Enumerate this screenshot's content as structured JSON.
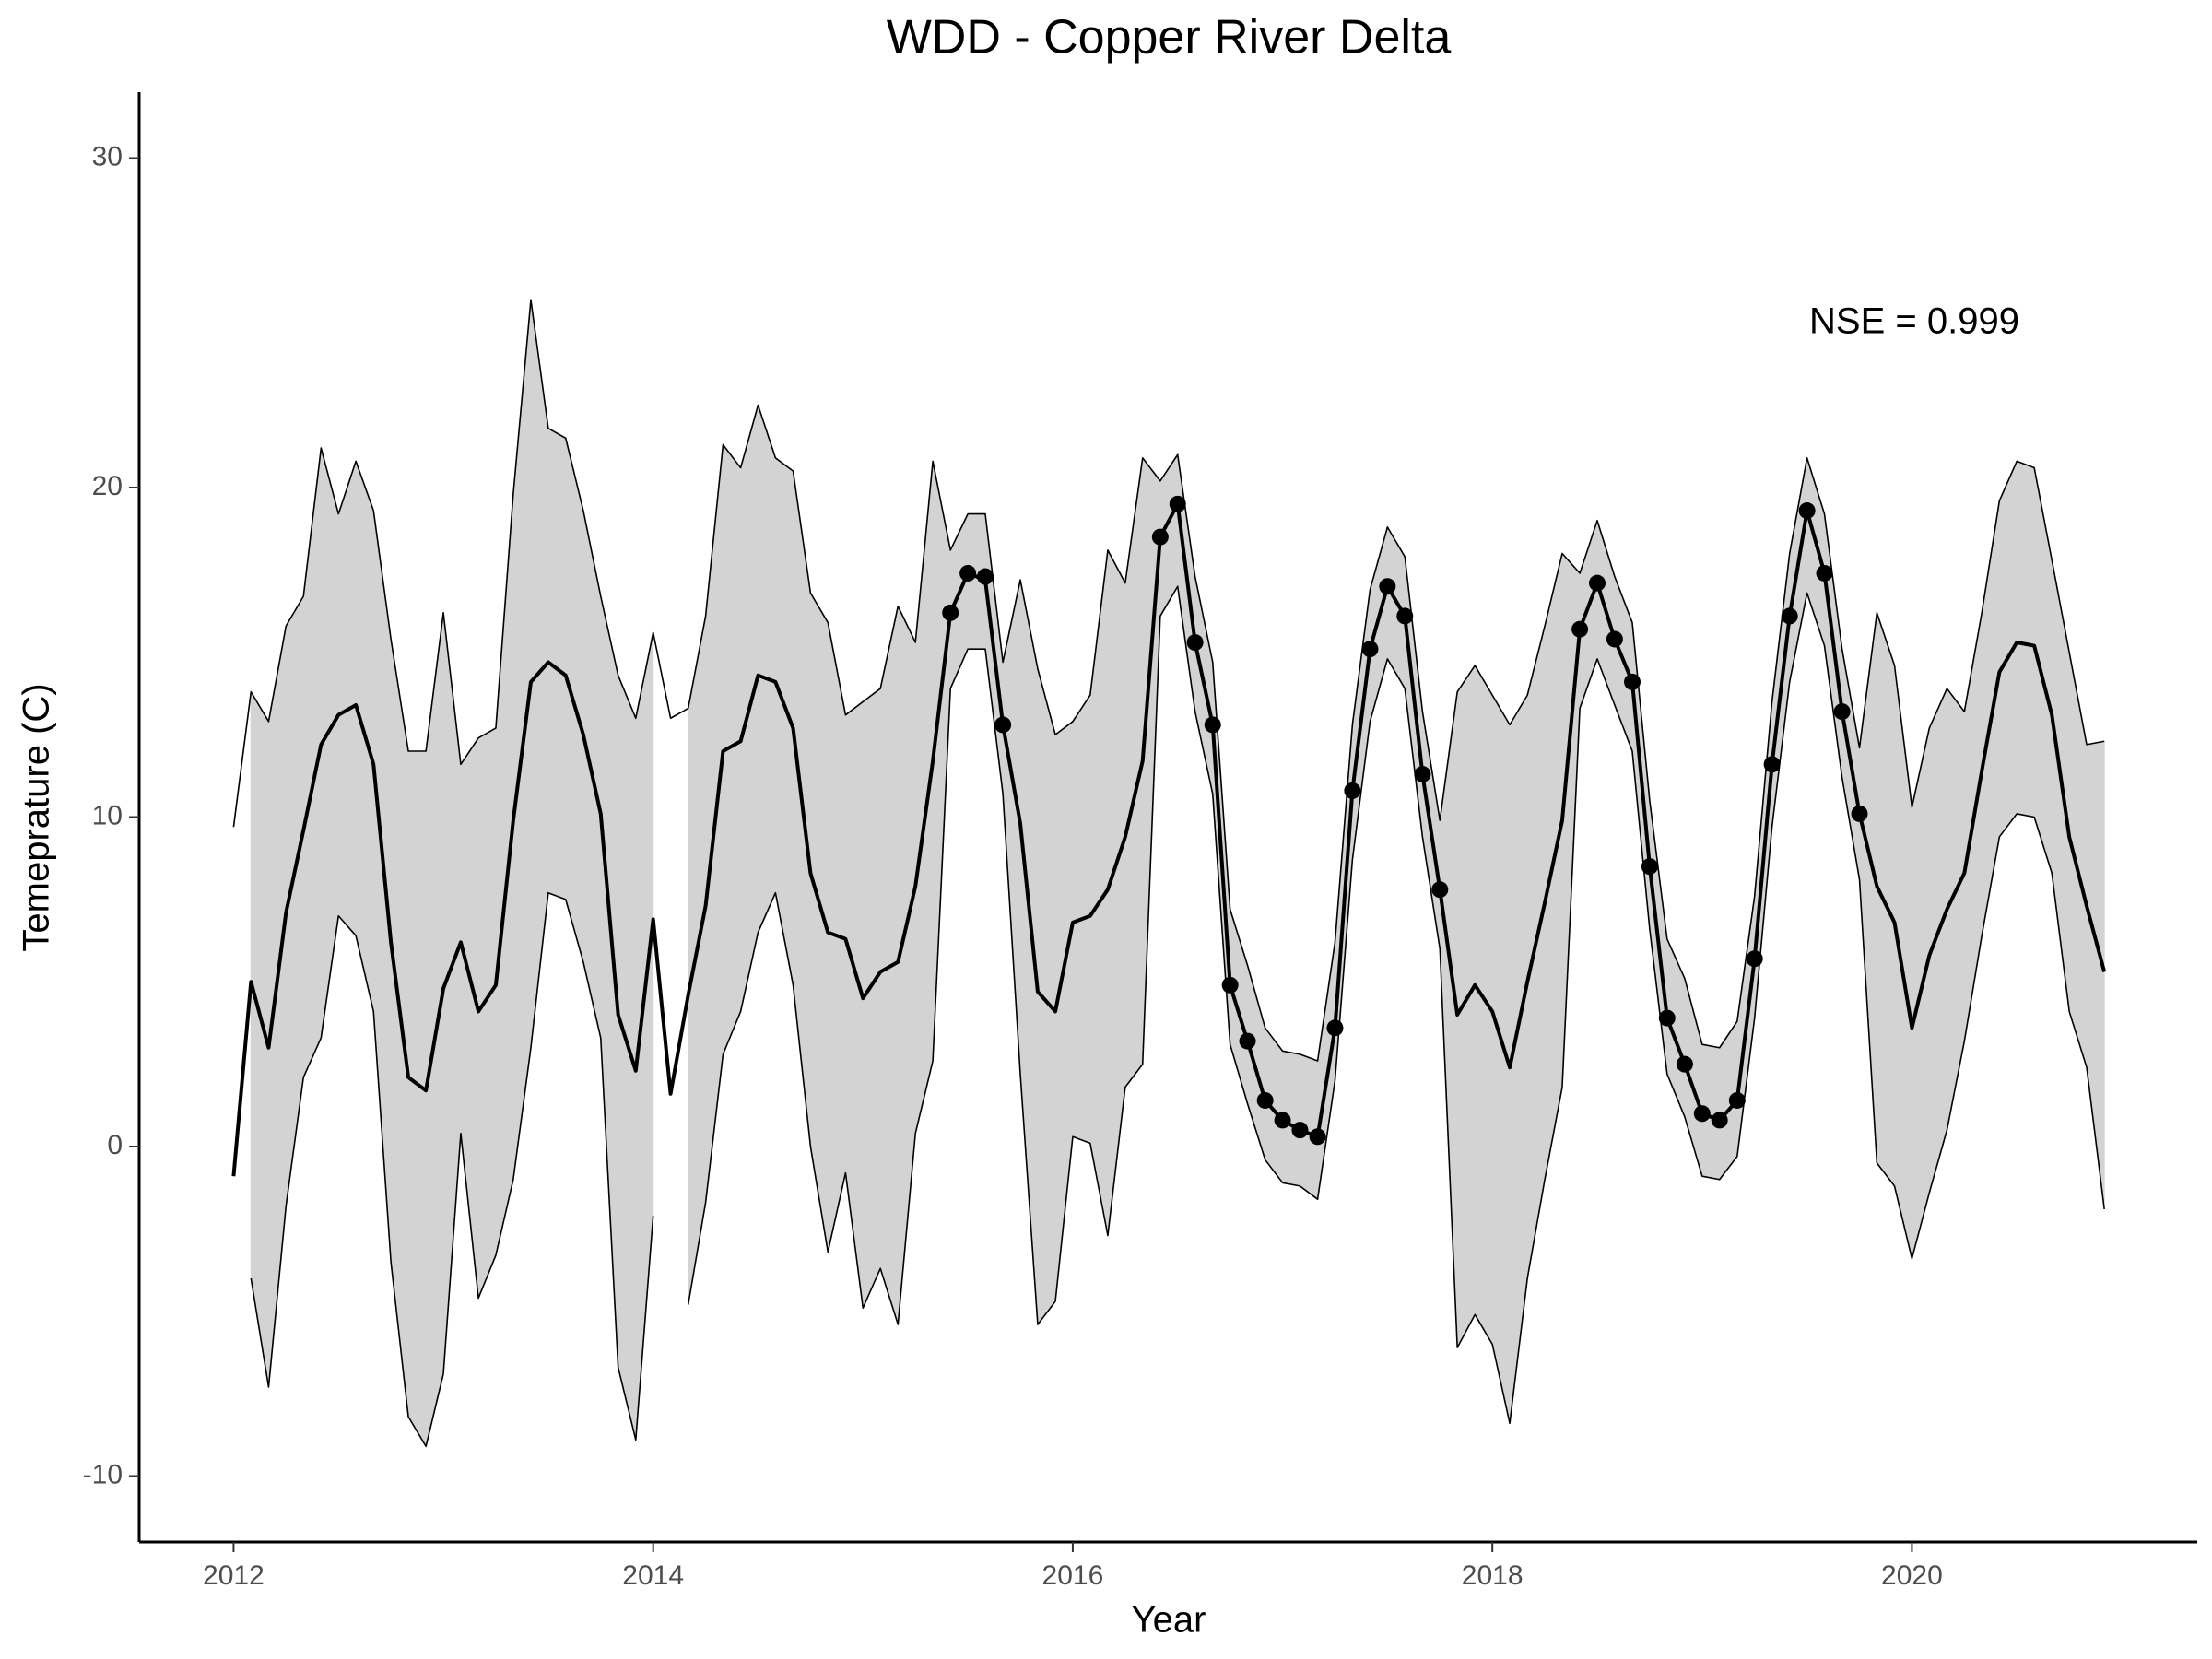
{
  "chart_data": {
    "type": "line",
    "title": "WDD - Copper River Delta",
    "x_label": "Year",
    "y_label": "Temeprature (C)",
    "annotation": "NSE = 0.999",
    "x": [
      2012,
      2012.083,
      2012.167,
      2012.25,
      2012.333,
      2012.417,
      2012.5,
      2012.583,
      2012.667,
      2012.75,
      2012.833,
      2012.917,
      2013,
      2013.083,
      2013.167,
      2013.25,
      2013.333,
      2013.417,
      2013.5,
      2013.583,
      2013.667,
      2013.75,
      2013.833,
      2013.917,
      2014,
      2014.083,
      2014.167,
      2014.25,
      2014.333,
      2014.417,
      2014.5,
      2014.583,
      2014.667,
      2014.75,
      2014.833,
      2014.917,
      2015,
      2015.083,
      2015.167,
      2015.25,
      2015.333,
      2015.417,
      2015.5,
      2015.583,
      2015.667,
      2015.75,
      2015.833,
      2015.917,
      2016,
      2016.083,
      2016.167,
      2016.25,
      2016.333,
      2016.417,
      2016.5,
      2016.583,
      2016.667,
      2016.75,
      2016.833,
      2016.917,
      2017,
      2017.083,
      2017.167,
      2017.25,
      2017.333,
      2017.417,
      2017.5,
      2017.583,
      2017.667,
      2017.75,
      2017.833,
      2017.917,
      2018,
      2018.083,
      2018.167,
      2018.25,
      2018.333,
      2018.417,
      2018.5,
      2018.583,
      2018.667,
      2018.75,
      2018.833,
      2018.917,
      2019,
      2019.083,
      2019.167,
      2019.25,
      2019.333,
      2019.417,
      2019.5,
      2019.583,
      2019.667,
      2019.75,
      2019.833,
      2019.917,
      2020,
      2020.083,
      2020.167,
      2020.25,
      2020.333,
      2020.417,
      2020.5,
      2020.583,
      2020.667,
      2020.75,
      2020.833,
      2020.917
    ],
    "mean": [
      -0.9,
      5.0,
      3.0,
      7.1,
      9.6,
      12.2,
      13.1,
      13.4,
      11.6,
      6.2,
      2.1,
      1.7,
      4.8,
      6.2,
      4.1,
      4.9,
      9.9,
      14.1,
      14.7,
      14.3,
      12.5,
      10.1,
      4.0,
      2.3,
      6.9,
      1.6,
      4.6,
      7.3,
      12.0,
      12.3,
      14.3,
      14.1,
      12.7,
      8.3,
      6.5,
      6.3,
      4.5,
      5.3,
      5.6,
      7.9,
      11.7,
      16.2,
      17.4,
      17.2,
      12.8,
      9.8,
      4.7,
      4.1,
      6.8,
      7.0,
      7.8,
      9.4,
      11.7,
      18.5,
      19.5,
      15.3,
      12.8,
      4.9,
      3.2,
      1.4,
      0.8,
      0.5,
      0.3,
      3.6,
      10.8,
      15.1,
      17.0,
      16.1,
      11.3,
      7.8,
      4.0,
      4.9,
      4.1,
      2.4,
      5.0,
      7.4,
      9.9,
      15.7,
      17.1,
      15.4,
      14.1,
      8.5,
      3.9,
      2.5,
      1.0,
      0.8,
      1.4,
      5.7,
      11.6,
      16.1,
      19.3,
      17.4,
      13.2,
      10.1,
      7.9,
      6.8,
      3.6,
      5.8,
      7.2,
      8.3,
      11.4,
      14.4,
      15.3,
      15.2,
      13.1,
      9.4,
      7.3,
      5.3
    ],
    "upper": [
      9.7,
      13.8,
      12.9,
      15.8,
      16.7,
      21.2,
      19.2,
      20.8,
      19.3,
      15.4,
      12.0,
      12.0,
      16.2,
      11.6,
      12.4,
      12.7,
      19.8,
      25.7,
      21.8,
      21.5,
      19.3,
      16.7,
      14.3,
      13.0,
      15.6,
      13.0,
      13.3,
      16.1,
      21.3,
      20.6,
      22.5,
      20.9,
      20.5,
      16.8,
      15.9,
      13.1,
      13.5,
      13.9,
      16.4,
      15.3,
      20.8,
      18.1,
      19.2,
      19.2,
      14.7,
      17.2,
      14.5,
      12.5,
      12.9,
      13.7,
      18.1,
      17.1,
      20.9,
      20.2,
      21.0,
      17.3,
      14.7,
      7.2,
      5.5,
      3.6,
      2.9,
      2.8,
      2.6,
      6.2,
      12.8,
      16.9,
      18.8,
      17.9,
      13.2,
      9.9,
      13.8,
      14.6,
      13.7,
      12.8,
      13.7,
      15.8,
      18.0,
      17.4,
      19.0,
      17.3,
      15.9,
      10.5,
      6.3,
      5.1,
      3.1,
      3.0,
      3.8,
      7.6,
      13.5,
      18.0,
      20.9,
      19.2,
      15.1,
      12.1,
      16.2,
      14.6,
      10.3,
      12.7,
      13.9,
      13.2,
      16.2,
      19.6,
      20.8,
      20.6,
      17.8,
      15.0,
      12.2,
      12.3
    ],
    "lower": [
      null,
      -4.0,
      -7.3,
      -1.8,
      2.1,
      3.3,
      7.0,
      6.4,
      4.1,
      -3.5,
      -8.2,
      -9.1,
      -6.9,
      0.4,
      -4.6,
      -3.3,
      -1.0,
      3.0,
      7.7,
      7.5,
      5.6,
      3.3,
      -6.7,
      -8.9,
      -2.1,
      null,
      -4.8,
      -1.7,
      2.8,
      4.1,
      6.5,
      7.7,
      4.9,
      0.0,
      -3.2,
      -0.8,
      -4.9,
      -3.7,
      -5.4,
      0.4,
      2.6,
      13.9,
      15.1,
      15.1,
      10.7,
      2.2,
      -5.4,
      -4.7,
      0.3,
      0.1,
      -2.7,
      1.8,
      2.5,
      16.1,
      17.0,
      13.2,
      10.7,
      3.1,
      1.3,
      -0.4,
      -1.1,
      -1.2,
      -1.6,
      2.0,
      8.7,
      12.9,
      14.8,
      13.9,
      9.4,
      6.0,
      -6.1,
      -5.1,
      -6.0,
      -8.4,
      -4.0,
      -1.0,
      1.8,
      13.3,
      14.8,
      13.4,
      12.0,
      6.6,
      2.2,
      0.9,
      -0.9,
      -1.0,
      -0.3,
      3.9,
      9.7,
      14.1,
      16.8,
      15.2,
      11.2,
      8.1,
      -0.5,
      -1.2,
      -3.4,
      -1.4,
      0.5,
      3.2,
      6.4,
      9.4,
      10.1,
      10.0,
      8.3,
      4.1,
      2.4,
      -1.9
    ],
    "observed": [
      null,
      null,
      null,
      null,
      null,
      null,
      null,
      null,
      null,
      null,
      null,
      null,
      null,
      null,
      null,
      null,
      null,
      null,
      null,
      null,
      null,
      null,
      null,
      null,
      null,
      null,
      null,
      null,
      null,
      null,
      null,
      null,
      null,
      null,
      null,
      null,
      null,
      null,
      null,
      null,
      null,
      16.2,
      17.4,
      17.3,
      12.8,
      null,
      null,
      null,
      null,
      null,
      null,
      null,
      null,
      18.5,
      19.5,
      15.3,
      12.8,
      4.9,
      3.2,
      1.4,
      0.8,
      0.5,
      0.3,
      3.6,
      10.8,
      15.1,
      17.0,
      16.1,
      11.3,
      7.8,
      null,
      null,
      null,
      null,
      null,
      null,
      null,
      15.7,
      17.1,
      15.4,
      14.1,
      8.5,
      3.9,
      2.5,
      1.0,
      0.8,
      1.4,
      5.7,
      11.6,
      16.1,
      19.3,
      17.4,
      13.2,
      10.1,
      null,
      null,
      null,
      null,
      null,
      null,
      null,
      null,
      null,
      null,
      null,
      null,
      null,
      null
    ],
    "band_color": "#d3d3d3",
    "line_color": "#000000",
    "point_color": "#000000",
    "xlim": [
      2011.55,
      2021.36
    ],
    "ylim": [
      -12,
      32
    ],
    "xticks": [
      2012,
      2014,
      2016,
      2018,
      2020
    ],
    "yticks": [
      -10,
      0,
      10,
      20,
      30
    ],
    "grid": false
  }
}
